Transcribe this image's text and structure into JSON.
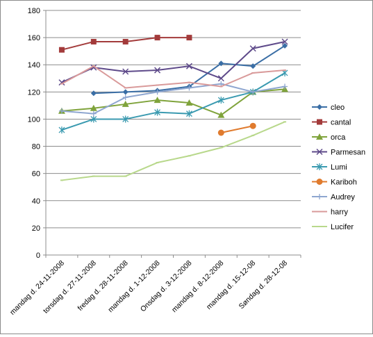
{
  "chart_data": {
    "type": "line",
    "title": "",
    "xlabel": "",
    "ylabel": "",
    "ylim": [
      0,
      180
    ],
    "ytick_step": 20,
    "grid": true,
    "legend_position": "right",
    "categories": [
      "mandag d. 24-11-2008",
      "torsdag d. 27-11-2008",
      "fredag d. 28-11-2008",
      "mandag d. 1-12-2008",
      "Onsdag d. 3-12-2008",
      "mandag d. 8-12-2008",
      "mandag d. 15-12-08",
      "Søndag d. 28-12-08"
    ],
    "series": [
      {
        "name": "cleo",
        "color": "#3a6ea5",
        "marker": "diamond",
        "values": [
          null,
          119,
          120,
          121,
          124,
          141,
          139,
          154
        ]
      },
      {
        "name": "cantal",
        "color": "#a33b3b",
        "marker": "square",
        "values": [
          151,
          157,
          157,
          160,
          160,
          null,
          null,
          null
        ]
      },
      {
        "name": "orca",
        "color": "#7fa33b",
        "marker": "triangle",
        "values": [
          106,
          108,
          111,
          114,
          112,
          103,
          120,
          122
        ]
      },
      {
        "name": "Parmesan",
        "color": "#5e4a8a",
        "marker": "x",
        "values": [
          127,
          138,
          135,
          136,
          139,
          130,
          152,
          157
        ]
      },
      {
        "name": "Lumi",
        "color": "#3a9ab0",
        "marker": "star",
        "values": [
          92,
          100,
          100,
          105,
          104,
          114,
          120,
          134
        ]
      },
      {
        "name": "Kariboh",
        "color": "#e07b2e",
        "marker": "circle",
        "values": [
          null,
          null,
          null,
          null,
          null,
          90,
          95,
          null
        ]
      },
      {
        "name": "Audrey",
        "color": "#8ea6d0",
        "marker": "plus",
        "values": [
          106,
          104,
          116,
          120,
          123,
          126,
          120,
          124
        ]
      },
      {
        "name": "harry",
        "color": "#d99a9a",
        "marker": "none",
        "values": [
          126,
          139,
          123,
          125,
          127,
          124,
          134,
          136
        ]
      },
      {
        "name": "Lucifer",
        "color": "#b8d88b",
        "marker": "none",
        "values": [
          55,
          58,
          58,
          68,
          73,
          79,
          88,
          98
        ]
      }
    ]
  }
}
